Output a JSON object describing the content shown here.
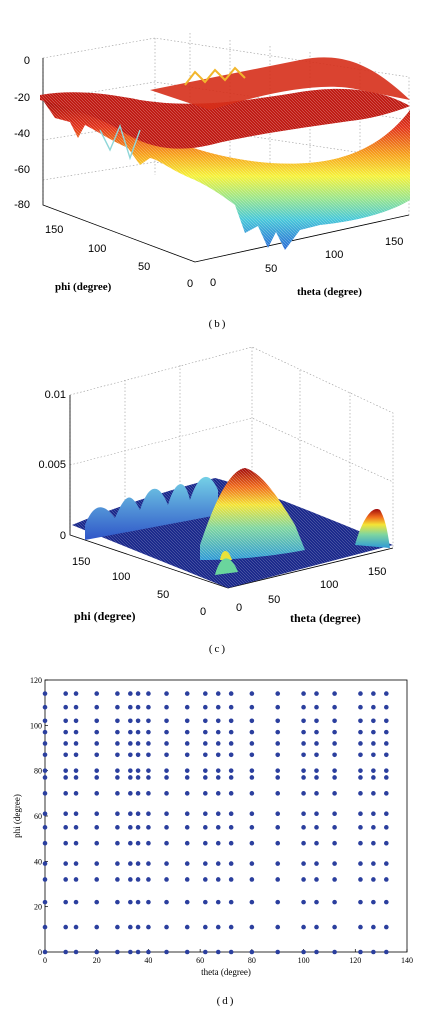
{
  "captions": {
    "b": "(b)",
    "c": "(c)",
    "d": "(d)"
  },
  "chart_data": [
    {
      "type": "surface",
      "panel": "(b)",
      "xlabel": "theta (degree)",
      "ylabel": "phi (degree)",
      "zlabel": "",
      "xticks": [
        "50",
        "100",
        "150"
      ],
      "yticks": [
        "150",
        "100",
        "50",
        "0"
      ],
      "zticks": [
        "0",
        "-20",
        "-40",
        "-60",
        "-80"
      ],
      "zlim": [
        -85,
        0
      ],
      "colormap": "jet",
      "description_values": {
        "ridge_level": -20,
        "min_level": -85
      }
    },
    {
      "type": "surface",
      "panel": "(c)",
      "xlabel": "theta (degree)",
      "ylabel": "phi (degree)",
      "xticks": [
        "0",
        "50",
        "100",
        "150"
      ],
      "yticks": [
        "150",
        "100",
        "50",
        "0"
      ],
      "zticks": [
        "0.01",
        "0.005",
        "0"
      ],
      "zlim": [
        0,
        0.01
      ],
      "colormap": "jet",
      "description_values": {
        "peak_level": 0.0045
      }
    },
    {
      "type": "scatter",
      "panel": "(d)",
      "xlabel": "theta (degree)",
      "ylabel": "phi (degree)",
      "xlim": [
        0,
        140
      ],
      "ylim": [
        0,
        120
      ],
      "xticks": [
        "0",
        "20",
        "40",
        "60",
        "80",
        "100",
        "120",
        "140"
      ],
      "yticks": [
        "0",
        "20",
        "40",
        "60",
        "80",
        "100",
        "120"
      ],
      "marker_color": "#2b3f9e",
      "theta_values": [
        8,
        12,
        20,
        28,
        33,
        36,
        40,
        47,
        55,
        62,
        67,
        72,
        80,
        90,
        100,
        105,
        112,
        122,
        127,
        132
      ],
      "phi_values": [
        0,
        11,
        22,
        32,
        39,
        48,
        55,
        61,
        70,
        77,
        80,
        87,
        92,
        97,
        102,
        108,
        114
      ],
      "axis_points": {
        "theta": 0,
        "phi": [
          0,
          11,
          22,
          32,
          39,
          48,
          55,
          61,
          70,
          77,
          80,
          87,
          92,
          97,
          102,
          108,
          114
        ]
      }
    }
  ]
}
